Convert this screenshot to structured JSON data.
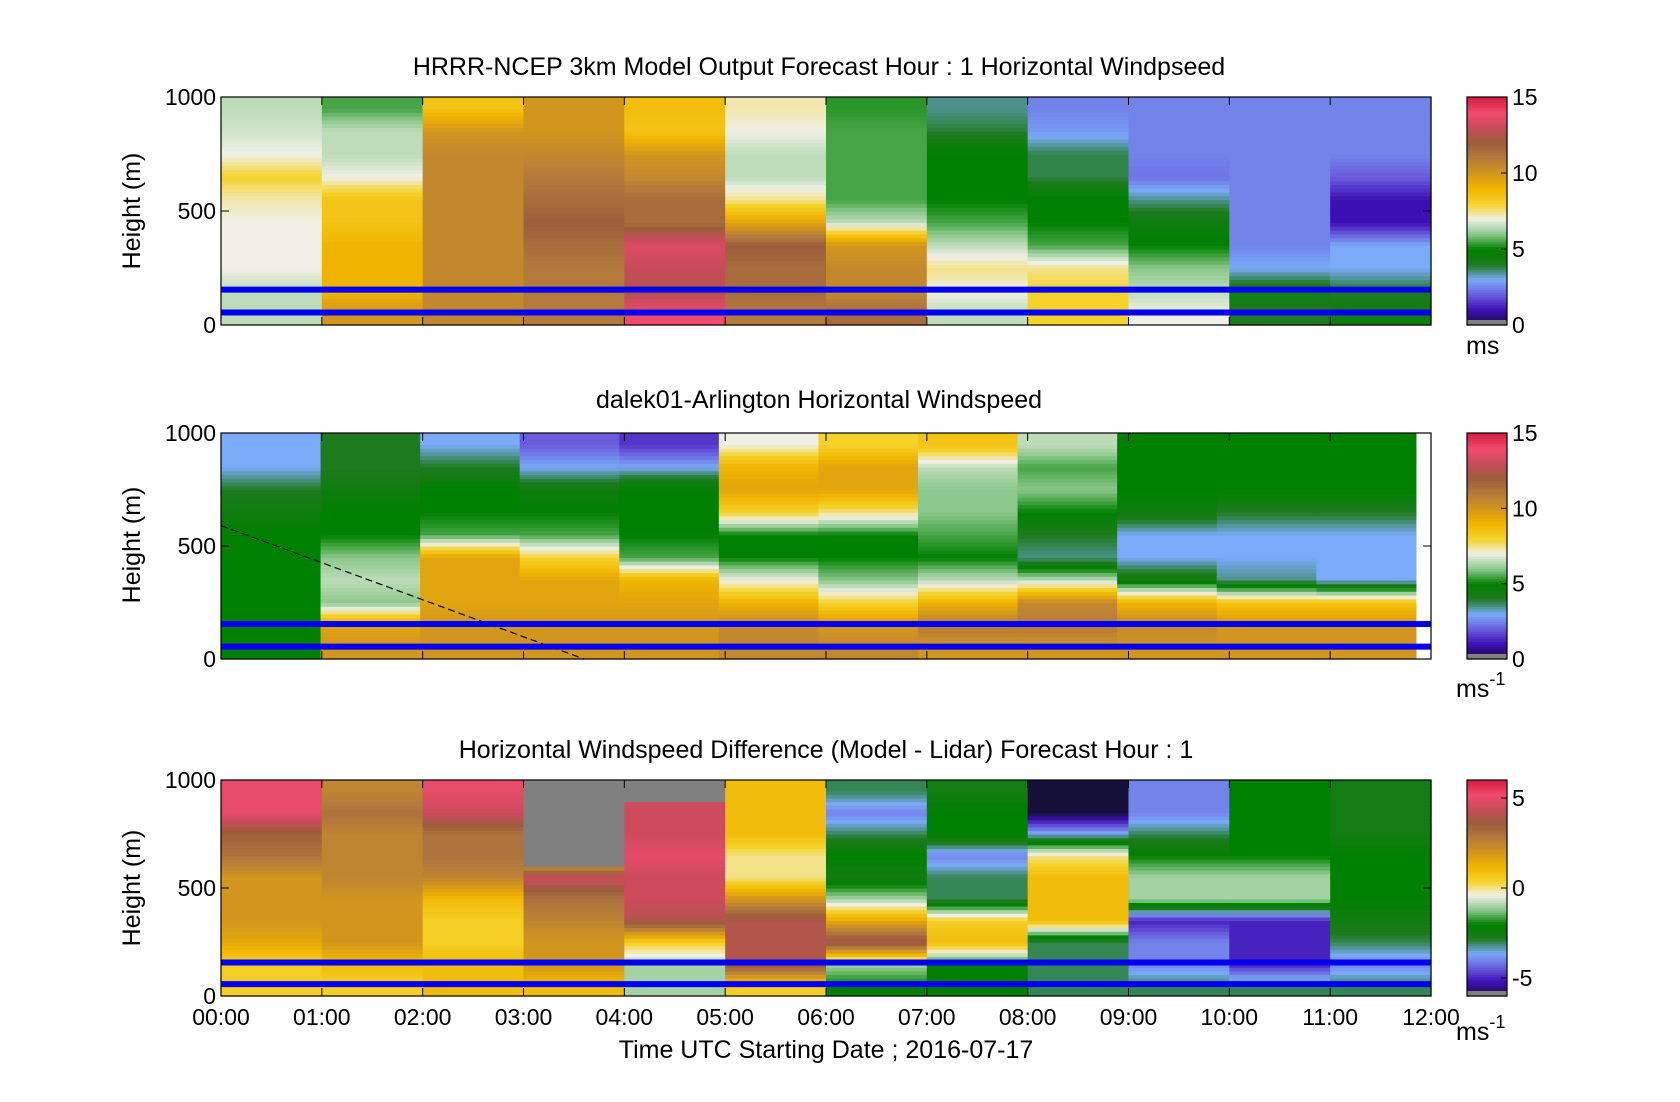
{
  "figure": {
    "xlabel": "Time UTC  Starting Date ; 2016-07-17",
    "x_tick_labels": [
      "00:00",
      "01:00",
      "02:00",
      "03:00",
      "04:00",
      "05:00",
      "06:00",
      "07:00",
      "08:00",
      "09:00",
      "10:00",
      "11:00",
      "12:00"
    ]
  },
  "colors": {
    "axis": "#000000",
    "reference_lines": "#0000ee",
    "missing": "#808080",
    "colormap": [
      "#14103a",
      "#3c0fb4",
      "#6a5cdc",
      "#7aaaf8",
      "#1e7a1e",
      "#008000",
      "#8cc88c",
      "#f0f0e6",
      "#f5d22a",
      "#f0b400",
      "#d2961e",
      "#b47a3c",
      "#9c5e3c",
      "#c84b5a",
      "#f04b6e",
      "#d21e3c"
    ]
  },
  "chart_data": [
    {
      "type": "heatmap",
      "title": "HRRR-NCEP 3km Model Output   Forecast Hour : 1 Horizontal Windpseed",
      "ylabel": "Height (m)",
      "xlim_hours": [
        0,
        12
      ],
      "ylim": [
        0,
        1000
      ],
      "y_ticks": [
        0,
        500,
        1000
      ],
      "reference_lines_m": [
        55,
        155
      ],
      "colorbar": {
        "range": [
          0,
          15
        ],
        "ticks": [
          0,
          5,
          10,
          15
        ],
        "unit": "ms"
      },
      "hours": [
        0,
        1,
        2,
        3,
        4,
        5,
        6,
        7,
        8,
        9,
        10,
        11
      ],
      "heights_m": [
        50,
        150,
        250,
        350,
        450,
        550,
        650,
        750,
        850,
        950
      ],
      "values": [
        [
          6.5,
          10,
          10.5,
          11,
          14,
          11,
          11.5,
          6.5,
          8,
          7,
          4,
          4.5
        ],
        [
          6.5,
          9,
          10.5,
          11,
          12.5,
          11.5,
          10.5,
          7,
          8,
          6.5,
          4.5,
          4
        ],
        [
          7,
          9,
          10.5,
          11,
          13,
          11.5,
          10.5,
          7.5,
          7.5,
          6,
          3,
          3
        ],
        [
          7,
          9,
          10.5,
          11.5,
          13.5,
          12,
          10,
          6.5,
          5.5,
          5,
          2.5,
          3
        ],
        [
          7,
          8.5,
          10.5,
          12,
          11.5,
          9.5,
          6.5,
          5.5,
          5,
          4.5,
          2.5,
          1
        ],
        [
          7.3,
          8.5,
          10.5,
          11.5,
          11.5,
          7.5,
          5.5,
          5,
          5,
          3.5,
          2.5,
          1
        ],
        [
          8,
          7,
          10.5,
          11,
          10.5,
          6.5,
          5.5,
          5,
          3.8,
          2.3,
          2.5,
          2
        ],
        [
          7,
          6.5,
          10.5,
          10.5,
          10,
          6.5,
          5.5,
          5,
          3.8,
          2.5,
          2.5,
          2.5
        ],
        [
          6.7,
          6.5,
          10,
          10,
          8.5,
          7,
          5.5,
          3.9,
          2.8,
          2.5,
          2.5,
          2.5
        ],
        [
          6.5,
          5.5,
          8.5,
          10,
          8.7,
          7.3,
          5.3,
          3.5,
          2.5,
          2.5,
          2.5,
          2.5
        ]
      ]
    },
    {
      "type": "heatmap",
      "title": "dalek01-Arlington  Horizontal Windspeed",
      "ylabel": "Height (m)",
      "xlim_hours": [
        0,
        12
      ],
      "ylim": [
        0,
        1000
      ],
      "y_ticks": [
        0,
        500,
        1000
      ],
      "reference_lines_m": [
        55,
        155
      ],
      "colorbar": {
        "range": [
          0,
          15
        ],
        "ticks": [
          0,
          5,
          10,
          15
        ],
        "unit": "ms",
        "unit_exponent": "-1"
      },
      "data_end_hour": 11.85,
      "boundary_layer_line": {
        "from": [
          0,
          590
        ],
        "to": [
          3.6,
          0
        ]
      },
      "hours": [
        0,
        1,
        2,
        3,
        4,
        5,
        6,
        7,
        8,
        9,
        10,
        11
      ],
      "heights_m": [
        50,
        150,
        250,
        350,
        450,
        550,
        650,
        750,
        850,
        950
      ],
      "values": [
        [
          5,
          10,
          10,
          10,
          10,
          10.5,
          10.5,
          10,
          10,
          10,
          10,
          10
        ],
        [
          5,
          9.5,
          10,
          10,
          10,
          10.5,
          10,
          11,
          11,
          10.5,
          10,
          10
        ],
        [
          5,
          6,
          9.5,
          9.5,
          9.5,
          9,
          8,
          9,
          10.5,
          9,
          8.5,
          8.5
        ],
        [
          5,
          6.5,
          9.5,
          9.5,
          9,
          7,
          6,
          6.5,
          6.5,
          4.5,
          3.5,
          3
        ],
        [
          5,
          6,
          9.5,
          8,
          5.5,
          5,
          5,
          5,
          3.5,
          3,
          3,
          3
        ],
        [
          5,
          5,
          5.5,
          5.5,
          5,
          5,
          5,
          5.5,
          4,
          3,
          3,
          3
        ],
        [
          4.5,
          5,
          5,
          5,
          5,
          8,
          7.5,
          6,
          5,
          4.5,
          4,
          4
        ],
        [
          4,
          4.5,
          5,
          4.5,
          5,
          9.5,
          9.5,
          6,
          6,
          5,
          5,
          5
        ],
        [
          3,
          4,
          4,
          3,
          3,
          9,
          9.5,
          6.5,
          5.5,
          5,
          5,
          5
        ],
        [
          3,
          4,
          3,
          2,
          1.5,
          7,
          8,
          8.5,
          6.5,
          5,
          5,
          5
        ]
      ]
    },
    {
      "type": "heatmap",
      "title": "Horizontal Windspeed Difference (Model - Lidar) Forecast Hour : 1",
      "ylabel": "Height (m)",
      "xlim_hours": [
        0,
        12
      ],
      "ylim": [
        0,
        1000
      ],
      "y_ticks": [
        0,
        500,
        1000
      ],
      "reference_lines_m": [
        55,
        155
      ],
      "colorbar": {
        "range": [
          -6,
          6
        ],
        "ticks": [
          -5,
          0,
          5
        ],
        "tick_labels": [
          "-5",
          "0",
          "5"
        ],
        "unit": "ms",
        "unit_exponent": "-1"
      },
      "missing_cells": [
        [
          3,
          6
        ],
        [
          3,
          7
        ],
        [
          3,
          8
        ],
        [
          3,
          9
        ],
        [
          4,
          9
        ]
      ],
      "hours": [
        0,
        1,
        2,
        3,
        4,
        5,
        6,
        7,
        8,
        9,
        10,
        11
      ],
      "heights_m": [
        50,
        150,
        250,
        350,
        450,
        550,
        650,
        750,
        850,
        950
      ],
      "values": [
        [
          0.5,
          0.5,
          1,
          1,
          -1,
          0.5,
          -2,
          -2,
          -3,
          -3,
          -3,
          -3
        ],
        [
          0.5,
          1,
          1,
          2,
          -1,
          4,
          -1,
          -2,
          -3,
          -4,
          -5,
          -4
        ],
        [
          1.5,
          2,
          0.5,
          2,
          0.5,
          4,
          4,
          1,
          -3,
          -4,
          -5,
          -3
        ],
        [
          2,
          2,
          0.5,
          2.5,
          4,
          4,
          1.5,
          0.5,
          1,
          -5,
          -5,
          -2.5
        ],
        [
          2,
          2,
          1,
          3,
          4.5,
          2,
          -1,
          -3,
          1,
          -1,
          -1,
          -2
        ],
        [
          2,
          2.5,
          2.5,
          4.5,
          4.5,
          0,
          -2.5,
          -3,
          1,
          -1,
          -1,
          -2
        ],
        [
          3,
          2.5,
          3,
          0,
          5,
          0,
          -2,
          -4,
          0,
          -2,
          -2,
          -2
        ],
        [
          3.5,
          2.5,
          3,
          0,
          4.5,
          1,
          -3,
          -2,
          -3.5,
          -3,
          -2,
          -2.5
        ],
        [
          5,
          3,
          4.5,
          0,
          4.5,
          1,
          -4,
          -2,
          -6,
          -4,
          -2,
          -2.5
        ],
        [
          5,
          2.5,
          5,
          0,
          4.5,
          1,
          -3,
          -2.5,
          -6,
          -4,
          -2,
          -2.5
        ]
      ]
    }
  ]
}
